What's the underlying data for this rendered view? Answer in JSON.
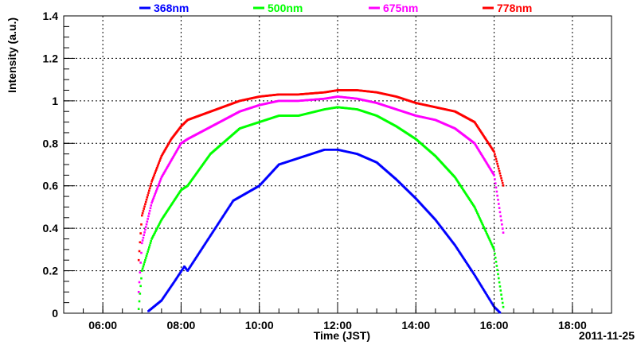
{
  "chart_data": {
    "type": "scatter",
    "xlabel": "Time (JST)",
    "ylabel": "Intensity (a.u.)",
    "date_label": "2011-11-25",
    "xlim": [
      "05:00",
      "19:00"
    ],
    "ylim": [
      0,
      1.4
    ],
    "x_ticks": [
      "06:00",
      "08:00",
      "10:00",
      "12:00",
      "14:00",
      "16:00",
      "18:00"
    ],
    "y_ticks": [
      "0",
      "0.2",
      "0.4",
      "0.6",
      "0.8",
      "1",
      "1.2",
      "1.4"
    ],
    "grid": true,
    "legend_position": "top",
    "series": [
      {
        "name": "368nm",
        "color": "#0000ff",
        "x": [
          "07:10",
          "07:30",
          "07:50",
          "08:05",
          "08:10",
          "09:20",
          "10:00",
          "10:30",
          "11:00",
          "11:40",
          "12:00",
          "12:30",
          "13:00",
          "13:30",
          "14:00",
          "14:30",
          "15:00",
          "15:30",
          "16:00",
          "16:10"
        ],
        "y": [
          0.01,
          0.06,
          0.15,
          0.22,
          0.2,
          0.53,
          0.6,
          0.7,
          0.73,
          0.77,
          0.77,
          0.75,
          0.71,
          0.63,
          0.54,
          0.44,
          0.32,
          0.18,
          0.03,
          0.0
        ]
      },
      {
        "name": "500nm",
        "color": "#00ff00",
        "x": [
          "06:55",
          "07:00",
          "07:15",
          "07:30",
          "07:45",
          "08:00",
          "08:10",
          "08:45",
          "09:30",
          "10:00",
          "10:30",
          "11:00",
          "11:40",
          "12:00",
          "12:30",
          "13:00",
          "13:30",
          "14:00",
          "14:30",
          "15:00",
          "15:30",
          "16:00",
          "16:15"
        ],
        "y": [
          0.02,
          0.2,
          0.35,
          0.44,
          0.51,
          0.58,
          0.6,
          0.75,
          0.87,
          0.9,
          0.93,
          0.93,
          0.96,
          0.97,
          0.96,
          0.93,
          0.88,
          0.82,
          0.74,
          0.64,
          0.5,
          0.3,
          0.01
        ]
      },
      {
        "name": "675nm",
        "color": "#ff00ff",
        "x": [
          "06:55",
          "07:00",
          "07:15",
          "07:30",
          "07:45",
          "08:00",
          "08:10",
          "09:30",
          "10:00",
          "10:30",
          "11:00",
          "11:40",
          "12:00",
          "12:30",
          "13:00",
          "13:30",
          "14:00",
          "14:30",
          "15:00",
          "15:30",
          "16:00",
          "16:15"
        ],
        "y": [
          0.1,
          0.33,
          0.52,
          0.64,
          0.72,
          0.8,
          0.82,
          0.95,
          0.98,
          1.0,
          1.0,
          1.01,
          1.02,
          1.01,
          0.99,
          0.96,
          0.93,
          0.91,
          0.87,
          0.8,
          0.65,
          0.36
        ]
      },
      {
        "name": "778nm",
        "color": "#ff0000",
        "x": [
          "06:55",
          "07:00",
          "07:15",
          "07:30",
          "07:45",
          "08:00",
          "08:10",
          "09:30",
          "10:00",
          "10:30",
          "11:00",
          "11:40",
          "12:00",
          "12:30",
          "13:00",
          "13:30",
          "14:00",
          "14:30",
          "15:00",
          "15:30",
          "16:00",
          "16:15"
        ],
        "y": [
          0.25,
          0.46,
          0.62,
          0.74,
          0.82,
          0.88,
          0.91,
          1.0,
          1.02,
          1.03,
          1.03,
          1.04,
          1.05,
          1.05,
          1.04,
          1.02,
          0.99,
          0.97,
          0.95,
          0.9,
          0.76,
          0.59
        ]
      }
    ]
  }
}
